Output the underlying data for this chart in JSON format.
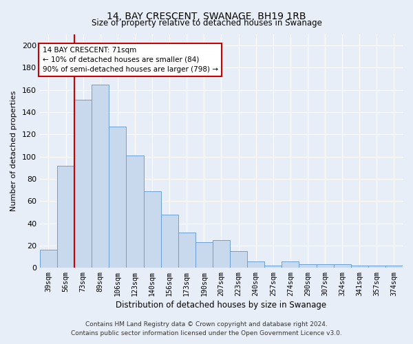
{
  "title": "14, BAY CRESCENT, SWANAGE, BH19 1RB",
  "subtitle": "Size of property relative to detached houses in Swanage",
  "xlabel": "Distribution of detached houses by size in Swanage",
  "ylabel": "Number of detached properties",
  "bar_labels": [
    "39sqm",
    "56sqm",
    "73sqm",
    "89sqm",
    "106sqm",
    "123sqm",
    "140sqm",
    "156sqm",
    "173sqm",
    "190sqm",
    "207sqm",
    "223sqm",
    "240sqm",
    "257sqm",
    "274sqm",
    "290sqm",
    "307sqm",
    "324sqm",
    "341sqm",
    "357sqm",
    "374sqm"
  ],
  "bar_values": [
    16,
    92,
    151,
    165,
    127,
    101,
    69,
    48,
    32,
    23,
    25,
    15,
    6,
    2,
    6,
    3,
    3,
    3,
    2,
    2,
    2
  ],
  "bar_color": "#c9d9ed",
  "bar_edge_color": "#6b9fd4",
  "vline_color": "#cc0000",
  "annotation_title": "14 BAY CRESCENT: 71sqm",
  "annotation_line1": "← 10% of detached houses are smaller (84)",
  "annotation_line2": "90% of semi-detached houses are larger (798) →",
  "annotation_box_facecolor": "#ffffff",
  "annotation_box_edgecolor": "#cc0000",
  "ylim": [
    0,
    210
  ],
  "yticks": [
    0,
    20,
    40,
    60,
    80,
    100,
    120,
    140,
    160,
    180,
    200
  ],
  "footer1": "Contains HM Land Registry data © Crown copyright and database right 2024.",
  "footer2": "Contains public sector information licensed under the Open Government Licence v3.0.",
  "bg_color": "#e8eef7",
  "plot_bg_color": "#e8eef7",
  "grid_color": "#ffffff"
}
